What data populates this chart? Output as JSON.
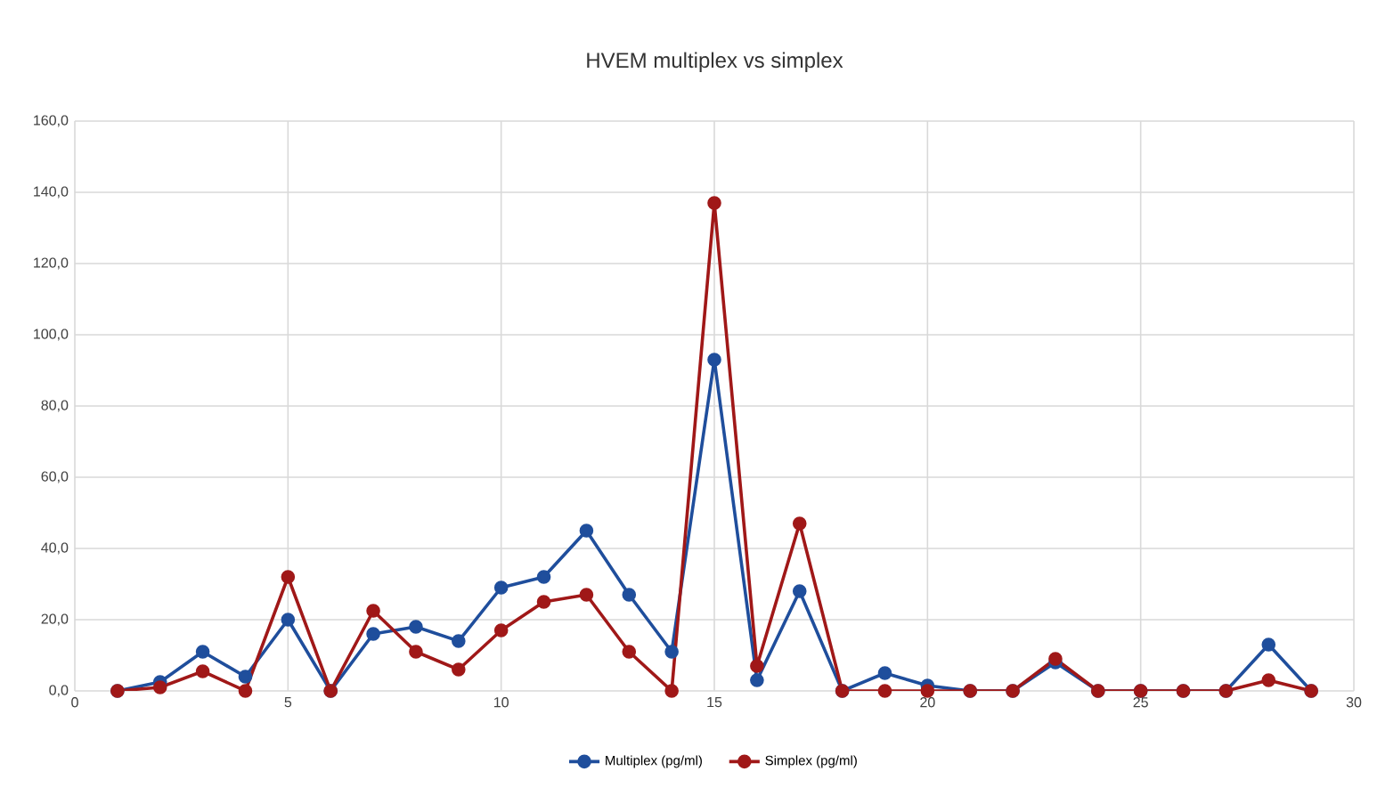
{
  "chart_data": {
    "type": "line",
    "title": "HVEM multiplex vs simplex",
    "x": [
      1,
      2,
      3,
      4,
      5,
      6,
      7,
      8,
      9,
      10,
      11,
      12,
      13,
      14,
      15,
      16,
      17,
      18,
      19,
      20,
      21,
      22,
      23,
      24,
      25,
      26,
      27,
      28,
      29
    ],
    "series": [
      {
        "name": "Multiplex (pg/ml)",
        "color": "#1f4e9c",
        "values": [
          0,
          2.5,
          11,
          4,
          20,
          0,
          16,
          18,
          14,
          29,
          32,
          45,
          27,
          11,
          93,
          3,
          28,
          0,
          5,
          1.5,
          0,
          0,
          8,
          0,
          0,
          0,
          0,
          13,
          0
        ]
      },
      {
        "name": "Simplex (pg/ml)",
        "color": "#a01818",
        "values": [
          0,
          1,
          5.5,
          0,
          32,
          0,
          22.5,
          11,
          6,
          17,
          25,
          27,
          11,
          0,
          137,
          7,
          47,
          0,
          0,
          0,
          0,
          0,
          9,
          0,
          0,
          0,
          0,
          3,
          0
        ]
      }
    ],
    "xlim": [
      0,
      30
    ],
    "xticks": [
      0,
      5,
      10,
      15,
      20,
      25,
      30
    ],
    "ylim": [
      0,
      160
    ],
    "yticks": [
      {
        "value": 0,
        "label": "0,0"
      },
      {
        "value": 20,
        "label": "20,0"
      },
      {
        "value": 40,
        "label": "40,0"
      },
      {
        "value": 60,
        "label": "60,0"
      },
      {
        "value": 80,
        "label": "80,0"
      },
      {
        "value": 100,
        "label": "100,0"
      },
      {
        "value": 120,
        "label": "120,0"
      },
      {
        "value": 140,
        "label": "140,0"
      },
      {
        "value": 160,
        "label": "160,0"
      }
    ],
    "grid": true,
    "legend": "bottom",
    "marker": "circle",
    "line_style": "solid"
  }
}
